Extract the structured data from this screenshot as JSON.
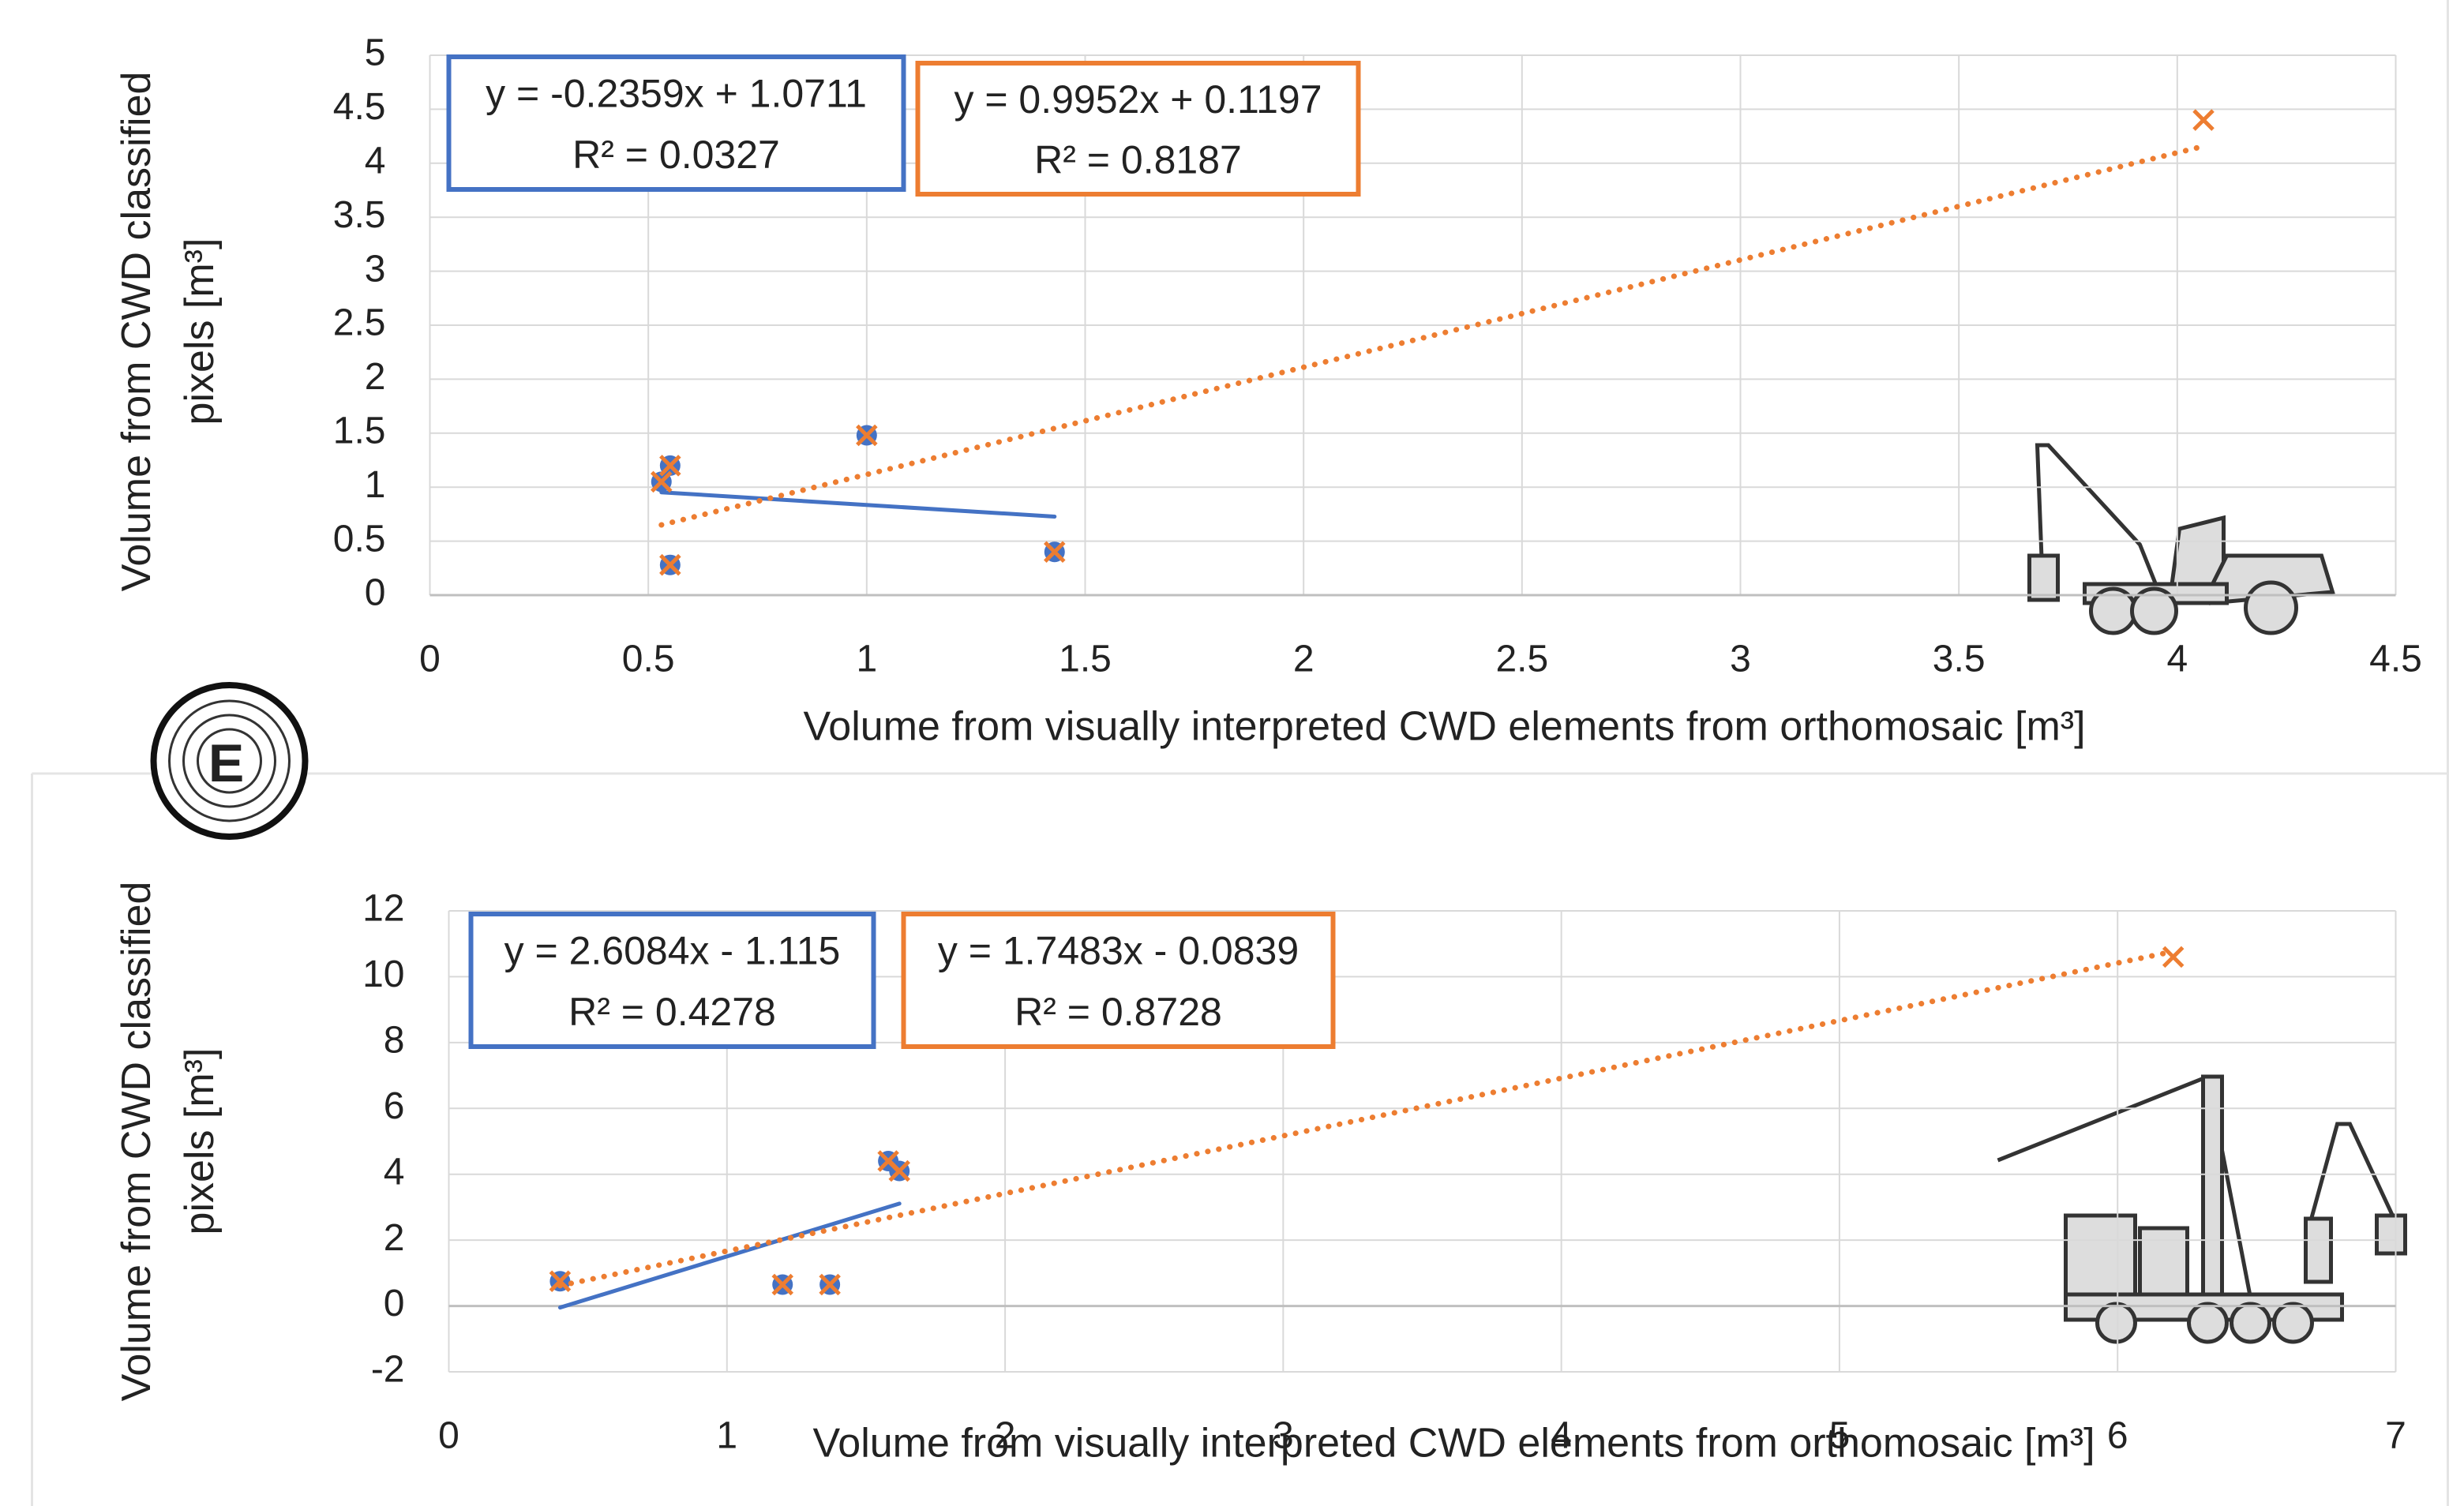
{
  "panel_label": "E",
  "chart_data": [
    {
      "type": "scatter",
      "x_label": "Volume from visually interpreted CWD elements from orthomosaic [m³]",
      "y_label": [
        "Volume from CWD classified",
        "pixels [m³]"
      ],
      "xlim": [
        0,
        4.5
      ],
      "xticks": [
        0,
        0.5,
        1,
        1.5,
        2,
        2.5,
        3,
        3.5,
        4,
        4.5
      ],
      "ylim": [
        0,
        5
      ],
      "yticks": [
        0,
        0.5,
        1,
        1.5,
        2,
        2.5,
        3,
        3.5,
        4,
        4.5,
        5
      ],
      "grid": true,
      "series": [
        {
          "color": "#4472c4",
          "marker": "circle",
          "x": [
            0.53,
            0.55,
            0.55,
            1.0,
            1.43
          ],
          "values": [
            1.05,
            1.2,
            0.28,
            1.48,
            0.4
          ],
          "trendline": {
            "equation": "y = -0.2359x + 1.0711",
            "r2": "R² = 0.0327"
          }
        },
        {
          "color": "#ed7d31",
          "marker": "x",
          "x": [
            0.53,
            0.55,
            0.55,
            1.0,
            1.43,
            4.06
          ],
          "values": [
            1.05,
            1.2,
            0.28,
            1.48,
            0.4,
            4.4
          ],
          "trendline": {
            "equation": "y = 0.9952x + 0.1197",
            "r2": "R² = 0.8187"
          }
        }
      ]
    },
    {
      "type": "scatter",
      "x_label": "Volume from visually interpreted CWD elements from orthomosaic [m³]",
      "y_label": [
        "Volume from CWD classified",
        "pixels [m³]"
      ],
      "xlim": [
        0,
        7
      ],
      "xticks": [
        0,
        1,
        2,
        3,
        4,
        5,
        6,
        7
      ],
      "ylim": [
        -2,
        12
      ],
      "yticks": [
        -2,
        0,
        2,
        4,
        6,
        8,
        10,
        12
      ],
      "grid": true,
      "series": [
        {
          "color": "#4472c4",
          "marker": "circle",
          "x": [
            0.4,
            1.2,
            1.37,
            1.58,
            1.62
          ],
          "values": [
            0.75,
            0.65,
            0.65,
            4.4,
            4.1
          ],
          "trendline": {
            "equation": "y = 2.6084x - 1.115",
            "r2": "R² = 0.4278"
          }
        },
        {
          "color": "#ed7d31",
          "marker": "x",
          "x": [
            0.4,
            1.2,
            1.37,
            1.58,
            1.62,
            6.2
          ],
          "values": [
            0.75,
            0.65,
            0.65,
            4.4,
            4.1,
            10.6
          ],
          "trendline": {
            "equation": "y = 1.7483x - 0.0839",
            "r2": "R² = 0.8728"
          }
        }
      ]
    }
  ]
}
